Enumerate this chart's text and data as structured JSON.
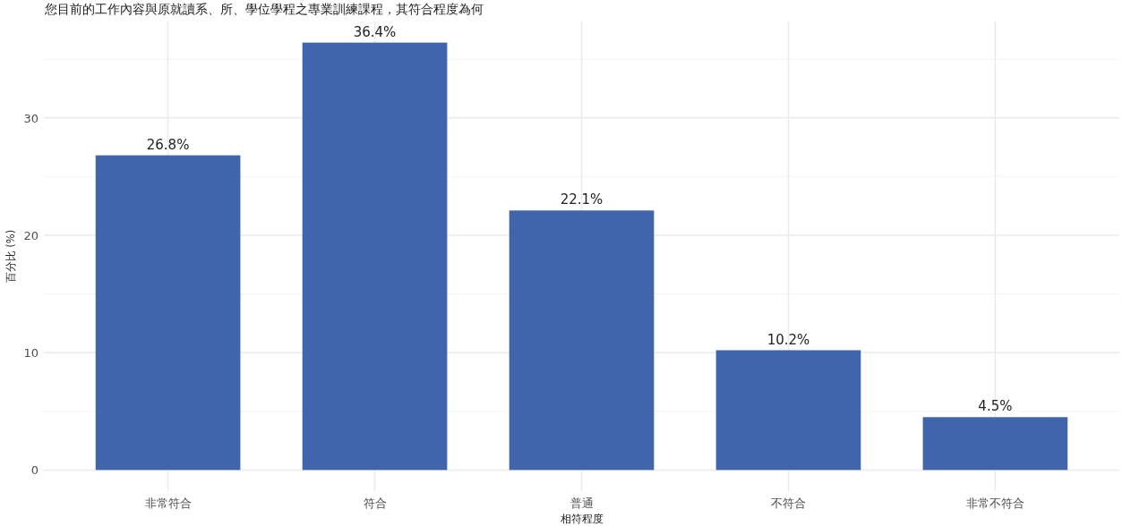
{
  "chart_data": {
    "type": "bar",
    "title": "您目前的工作內容與原就讀系、所、學位學程之專業訓練課程，其符合程度為何",
    "xlabel": "相符程度",
    "ylabel": "百分比 (%)",
    "categories": [
      "非常符合",
      "符合",
      "普通",
      "不符合",
      "非常不符合"
    ],
    "values": [
      26.8,
      36.4,
      22.1,
      10.2,
      4.5
    ],
    "value_labels": [
      "26.8%",
      "36.4%",
      "22.1%",
      "10.2%",
      "4.5%"
    ],
    "color": "#4065ad",
    "ylim": [
      -1.8,
      38.2
    ],
    "yticks": [
      0,
      {
        "value": 5,
        "label": null
      },
      10,
      {
        "value": 15,
        "label": null
      },
      20,
      {
        "value": 25,
        "label": null
      },
      30,
      {
        "value": 35,
        "label": null
      }
    ],
    "grid": true
  }
}
